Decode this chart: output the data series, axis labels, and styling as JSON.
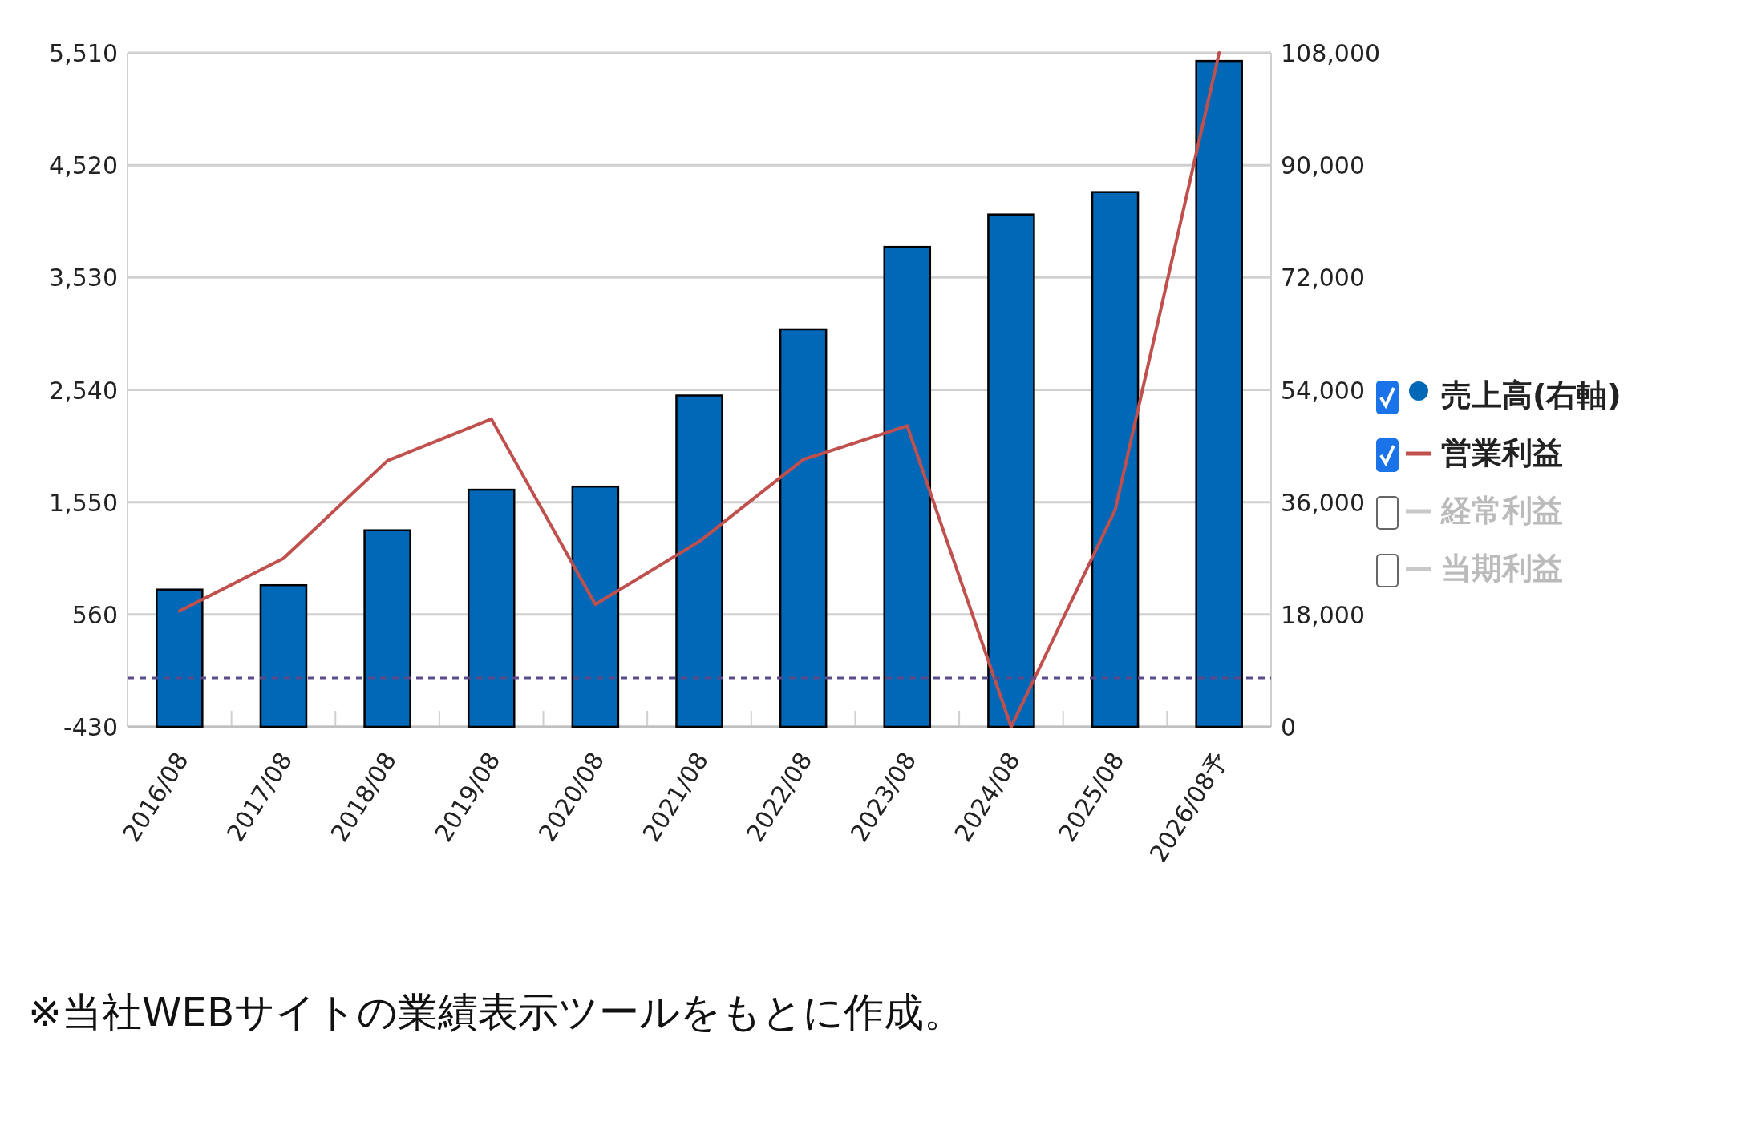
{
  "chart_data": {
    "type": "bar",
    "categories": [
      "2016/08",
      "2017/08",
      "2018/08",
      "2019/08",
      "2020/08",
      "2021/08",
      "2022/08",
      "2023/08",
      "2024/08",
      "2025/08",
      "2026/08予"
    ],
    "series": [
      {
        "name": "売上高(右軸)",
        "axis": "y2",
        "color": "#0068b7",
        "values": [
          22000,
          22700,
          31500,
          38000,
          38500,
          53100,
          63700,
          76900,
          82100,
          85700,
          106700
        ]
      },
      {
        "name": "営業利益",
        "type": "line",
        "color": "#c0504d",
        "values": [
          590,
          1055,
          1916,
          2283,
          649,
          1204,
          1926,
          2223,
          -430,
          1481,
          5510
        ]
      },
      {
        "name": "経常利益",
        "type": "line",
        "color": "#c8c8c8",
        "values": [
          null,
          null,
          null,
          null,
          null,
          null,
          null,
          null,
          null,
          null,
          null
        ]
      },
      {
        "name": "当期利益",
        "type": "line",
        "color": "#c8c8c8",
        "values": [
          null,
          null,
          null,
          null,
          null,
          null,
          null,
          null,
          null,
          null,
          null
        ]
      }
    ],
    "ylim": [
      -430,
      5510
    ],
    "yticks": [
      -430,
      560,
      {
        "value": 1550,
        "label": "1,550"
      },
      {
        "value": 2540,
        "label": "2,540"
      },
      {
        "value": 3530,
        "label": "3,530"
      },
      {
        "value": 4520,
        "label": "4,520"
      },
      {
        "value": 5510,
        "label": "5,510"
      }
    ],
    "y2lim": [
      0,
      108000
    ],
    "y2ticks": [
      0,
      {
        "value": 18000,
        "label": "18,000"
      },
      {
        "value": 36000,
        "label": "36,000"
      },
      {
        "value": 54000,
        "label": "54,000"
      },
      {
        "value": 72000,
        "label": "72,000"
      },
      {
        "value": 90000,
        "label": "90,000"
      },
      {
        "value": 108000,
        "label": "108,000"
      }
    ],
    "ref_lines": [
      {
        "axis": "y",
        "value": 0,
        "color": "#5a4a8a",
        "line_style": "dashed"
      }
    ],
    "grid": "y",
    "legend": "right",
    "annotations": [
      "※当社WEBサイトの業績表示ツールをもとに作成。"
    ]
  }
}
